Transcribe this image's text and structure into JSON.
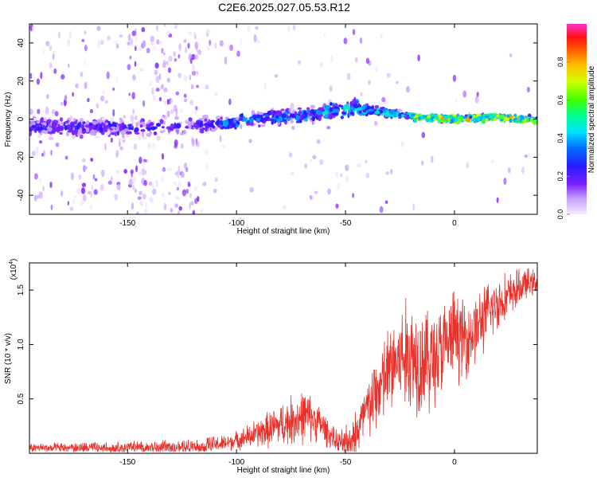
{
  "figure_title": "C2E6.2025.027.05.53.R12",
  "colors": {
    "snr_line": "#e8312b",
    "axis": "#000000",
    "spectro_ramp": [
      "#f0e0ff",
      "#b070ff",
      "#6a00ff",
      "#2020ff",
      "#00c8ff",
      "#40ff40",
      "#ffff00",
      "#ff8000",
      "#ff2020",
      "#ff40c0"
    ]
  },
  "chart_data": [
    {
      "type": "heatmap",
      "title": "C2E6.2025.027.05.53.R12",
      "xlabel": "Height of straight line (km)",
      "ylabel": "Frequency (Hz)",
      "xlim": [
        -195,
        38
      ],
      "ylim": [
        -50,
        50
      ],
      "x_ticks": [
        -150,
        -100,
        -50,
        0
      ],
      "y_ticks": [
        -40,
        -20,
        0,
        20,
        40
      ],
      "ridge": {
        "description_points": [
          {
            "x": -195,
            "y": -4
          },
          {
            "x": -160,
            "y": -4
          },
          {
            "x": -150,
            "y": -5
          },
          {
            "x": -112,
            "y": -3
          },
          {
            "x": -90,
            "y": 0
          },
          {
            "x": -70,
            "y": 2
          },
          {
            "x": -55,
            "y": 5
          },
          {
            "x": -45,
            "y": 6
          },
          {
            "x": -30,
            "y": 3
          },
          {
            "x": -15,
            "y": 1
          },
          {
            "x": 0,
            "y": 0
          },
          {
            "x": 20,
            "y": 1
          },
          {
            "x": 38,
            "y": -1
          }
        ]
      },
      "colorbar": {
        "label": "Normalized spectral amplitude",
        "range": [
          0,
          1
        ],
        "ticks": [
          0.0,
          0.2,
          0.4,
          0.6,
          0.8
        ]
      }
    },
    {
      "type": "line",
      "xlabel": "Height of straight line (km)",
      "ylabel": "SNR (10 * v/v)",
      "y_multiplier": "(x10",
      "y_multiplier_exp": "4",
      "xlim": [
        -195,
        38
      ],
      "ylim": [
        0,
        1.75
      ],
      "x_ticks": [
        -150,
        -100,
        -50,
        0
      ],
      "y_ticks": [
        0.5,
        1.0,
        1.5
      ],
      "series": [
        {
          "trend": [
            {
              "x": -195,
              "y": 0.05
            },
            {
              "x": -160,
              "y": 0.05
            },
            {
              "x": -140,
              "y": 0.05
            },
            {
              "x": -120,
              "y": 0.06
            },
            {
              "x": -105,
              "y": 0.09
            },
            {
              "x": -95,
              "y": 0.15
            },
            {
              "x": -85,
              "y": 0.22
            },
            {
              "x": -75,
              "y": 0.3
            },
            {
              "x": -68,
              "y": 0.35
            },
            {
              "x": -62,
              "y": 0.28
            },
            {
              "x": -55,
              "y": 0.12
            },
            {
              "x": -50,
              "y": 0.07
            },
            {
              "x": -45,
              "y": 0.18
            },
            {
              "x": -40,
              "y": 0.4
            },
            {
              "x": -33,
              "y": 0.65
            },
            {
              "x": -27,
              "y": 0.85
            },
            {
              "x": -20,
              "y": 0.9
            },
            {
              "x": -12,
              "y": 0.85
            },
            {
              "x": -5,
              "y": 0.95
            },
            {
              "x": 0,
              "y": 1.1
            },
            {
              "x": 5,
              "y": 1.05
            },
            {
              "x": 10,
              "y": 1.15
            },
            {
              "x": 18,
              "y": 1.35
            },
            {
              "x": 25,
              "y": 1.45
            },
            {
              "x": 32,
              "y": 1.55
            },
            {
              "x": 38,
              "y": 1.58
            }
          ],
          "noise_amplitude": [
            {
              "x": -195,
              "a": 0.04
            },
            {
              "x": -100,
              "a": 0.08
            },
            {
              "x": -70,
              "a": 0.25
            },
            {
              "x": -55,
              "a": 0.1
            },
            {
              "x": -40,
              "a": 0.3
            },
            {
              "x": -20,
              "a": 0.55
            },
            {
              "x": 0,
              "a": 0.4
            },
            {
              "x": 20,
              "a": 0.25
            },
            {
              "x": 38,
              "a": 0.1
            }
          ]
        }
      ]
    }
  ]
}
